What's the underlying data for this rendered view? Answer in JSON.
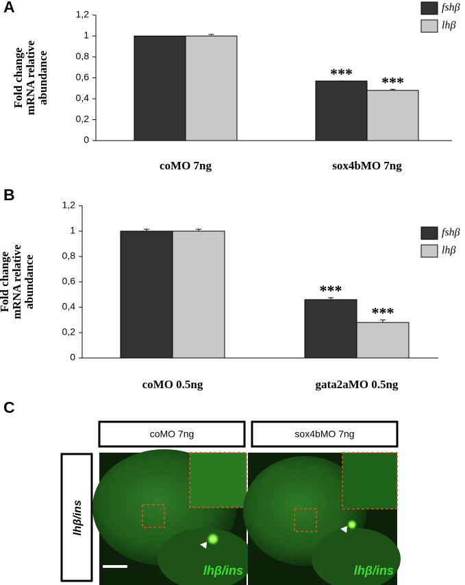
{
  "chart_data": [
    {
      "type": "bar",
      "panel": "A",
      "ylabel": [
        "Fold change",
        "mRNA relative",
        "abundance"
      ],
      "categories": [
        "coMO 7ng",
        "sox4bMO 7ng"
      ],
      "series": [
        {
          "name": "fshβ",
          "color": "#333333",
          "values": [
            1,
            0.57
          ],
          "errors": [
            0,
            0
          ],
          "significance": [
            null,
            "***"
          ]
        },
        {
          "name": "lhβ",
          "color": "#c8c8c8",
          "values": [
            1,
            0.48
          ],
          "errors": [
            0.015,
            0.01
          ],
          "significance": [
            null,
            "***"
          ]
        }
      ],
      "ylim": [
        0,
        1.2
      ],
      "yticks": [
        0,
        {
          "value": 0.2,
          "label": "0,2"
        },
        {
          "value": 0.4,
          "label": "0,4"
        },
        {
          "value": 0.6,
          "label": "0,6"
        },
        {
          "value": 0.8,
          "label": "0,8"
        },
        1,
        {
          "value": 1.2,
          "label": "1,2"
        }
      ],
      "legend": "upper right"
    },
    {
      "type": "bar",
      "panel": "B",
      "ylabel": [
        "Fold change",
        "mRNA relative",
        "abundance"
      ],
      "categories": [
        "coMO 0.5ng",
        "gata2aMO 0.5ng"
      ],
      "series": [
        {
          "name": "fshβ",
          "color": "#333333",
          "values": [
            1,
            0.46
          ],
          "errors": [
            0.015,
            0.015
          ],
          "significance": [
            null,
            "***"
          ]
        },
        {
          "name": "lhβ",
          "color": "#c8c8c8",
          "values": [
            1,
            0.28
          ],
          "errors": [
            0.015,
            0.02
          ],
          "significance": [
            null,
            "***"
          ]
        }
      ],
      "ylim": [
        0,
        1.2
      ],
      "yticks": [
        0,
        {
          "value": 0.2,
          "label": "0,2"
        },
        {
          "value": 0.4,
          "label": "0,4"
        },
        {
          "value": 0.6,
          "label": "0,6"
        },
        {
          "value": 0.8,
          "label": "0,8"
        },
        1,
        {
          "value": 1.2,
          "label": "1,2"
        }
      ],
      "legend": "right"
    }
  ],
  "panel_c": {
    "label": "C",
    "columns": [
      "coMO 7ng",
      "sox4bMO 7ng"
    ],
    "row": "lhβ/ins",
    "image_labels": [
      "lhβ/ins",
      "lhβ/ins"
    ]
  }
}
